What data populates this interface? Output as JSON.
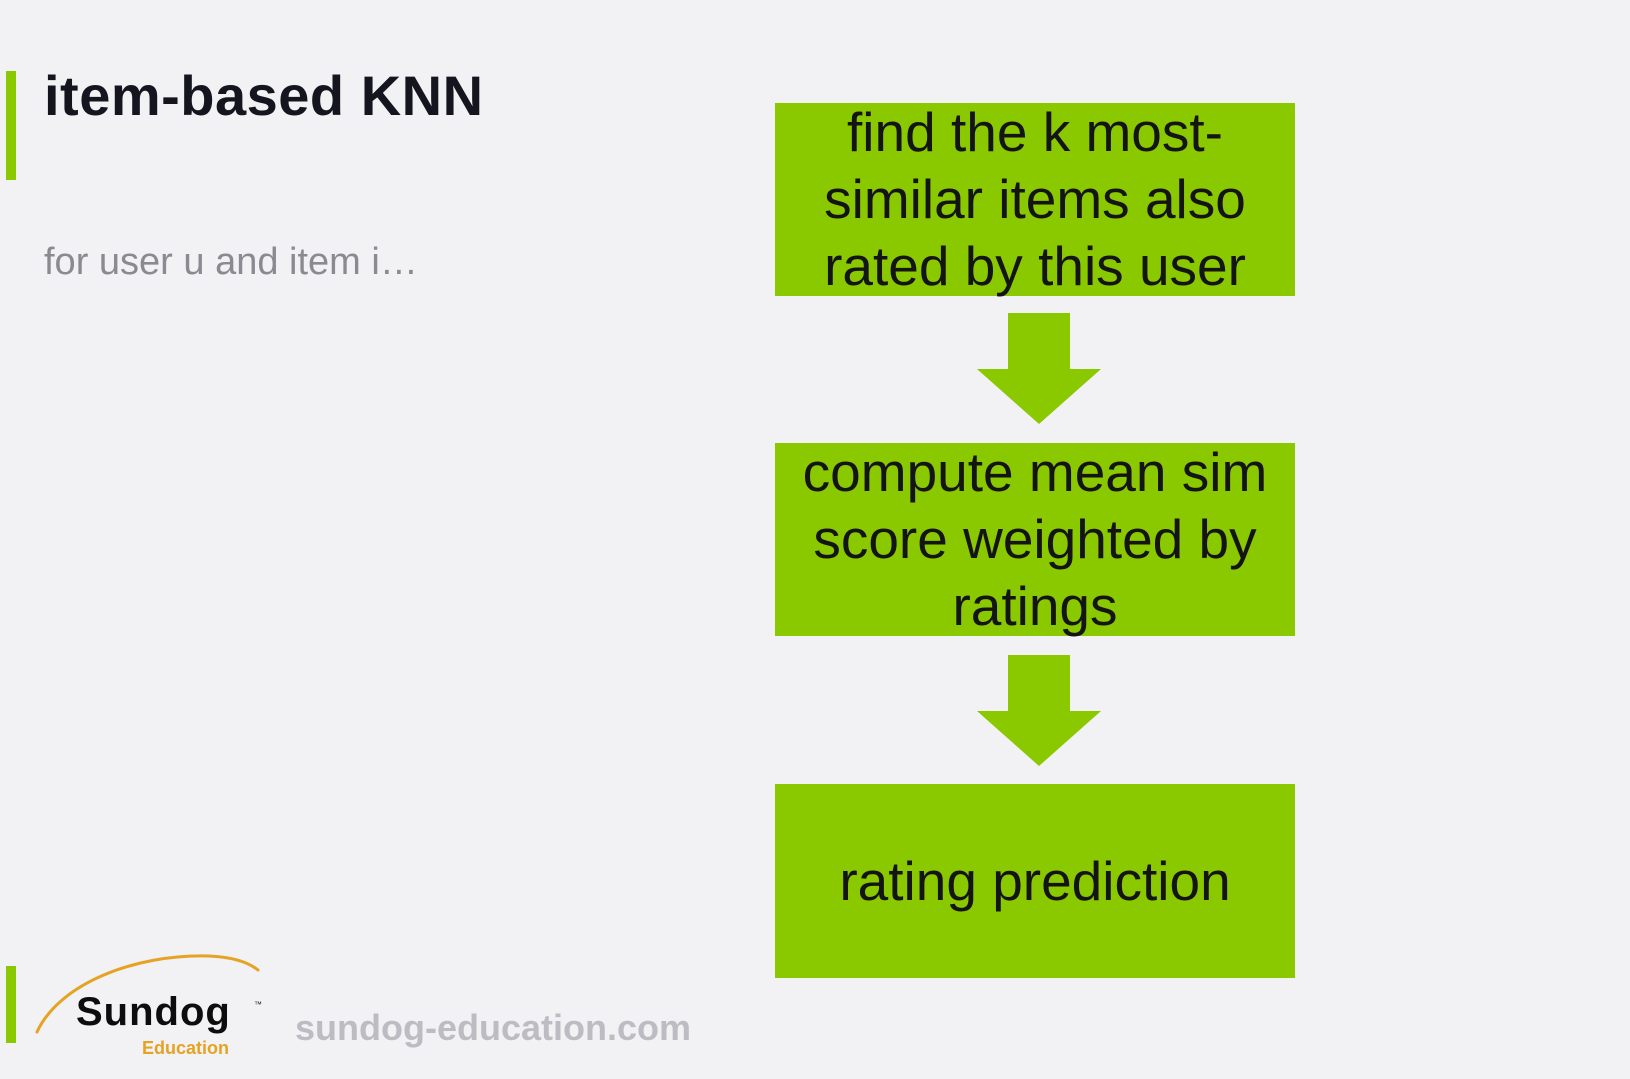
{
  "slide": {
    "title": "item-based KNN",
    "subtitle": "for user u and item i…"
  },
  "flow": {
    "steps": [
      {
        "lines": [
          "find the k most-",
          "similar items also",
          "rated by this user"
        ]
      },
      {
        "lines": [
          "compute mean sim",
          "score weighted by",
          "ratings"
        ]
      },
      {
        "lines": [
          "rating prediction"
        ]
      }
    ]
  },
  "footer": {
    "logo_name": "Sundog",
    "logo_trademark": "™",
    "logo_sub": "Education",
    "url": "sundog-education.com"
  },
  "colors": {
    "accent": "#8ac800",
    "background": "#f2f1f4",
    "title_text": "#15151f",
    "subtitle_text": "#8a8a90",
    "logo_orange": "#e5a323",
    "url_text": "#bdbcc2"
  }
}
